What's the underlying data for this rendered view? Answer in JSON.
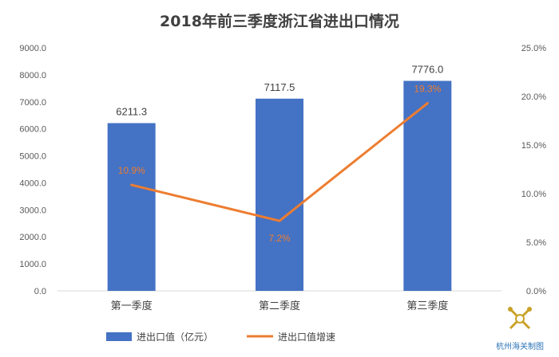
{
  "colors": {
    "bar": "#4472c4",
    "line": "#ed7d31",
    "watermark": "#2e75b6"
  },
  "watermark": {
    "text": "杭州海关制图",
    "icon": "customs-emblem-icon"
  },
  "chart_data": {
    "type": "bar",
    "title": "2018年前三季度浙江省进出口情况",
    "categories": [
      "第一季度",
      "第二季度",
      "第三季度"
    ],
    "series": [
      {
        "name": "进出口值（亿元）",
        "type": "bar",
        "axis": "left",
        "values": [
          6211.3,
          7117.5,
          7776.0
        ],
        "labels": [
          "6211.3",
          "7117.5",
          "7776.0"
        ]
      },
      {
        "name": "进出口值增速",
        "type": "line",
        "axis": "right",
        "values": [
          10.9,
          7.2,
          19.3
        ],
        "labels": [
          "10.9%",
          "7.2%",
          "19.3%"
        ]
      }
    ],
    "y_left": {
      "ylim": [
        0,
        9000
      ],
      "ticks": [
        "0.0",
        "1000.0",
        "2000.0",
        "3000.0",
        "4000.0",
        "5000.0",
        "6000.0",
        "7000.0",
        "8000.0",
        "9000.0"
      ]
    },
    "y_right": {
      "ylim": [
        0,
        25
      ],
      "ticks": [
        "0.0%",
        "5.0%",
        "10.0%",
        "15.0%",
        "20.0%",
        "25.0%"
      ]
    },
    "grid": false,
    "legend": "bottom"
  }
}
